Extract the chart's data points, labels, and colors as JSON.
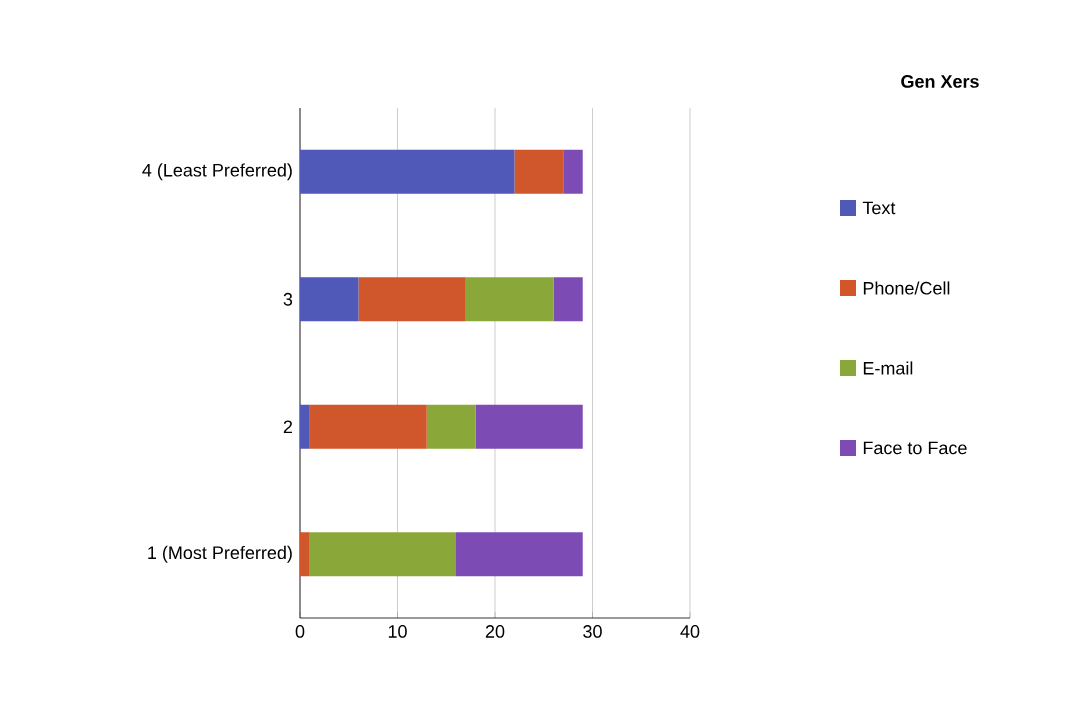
{
  "chart_data": {
    "type": "bar",
    "orientation": "horizontal",
    "stacked": true,
    "legend_title": "Gen Xers",
    "legend": "right",
    "grid": "x",
    "categories": [
      "4 (Least Preferred)",
      "3",
      "2",
      "1 (Most Preferred)"
    ],
    "xlim": [
      0,
      40
    ],
    "xticks": [
      0,
      10,
      20,
      30,
      40
    ],
    "series": [
      {
        "name": "Text",
        "color": "#5058b8",
        "values": [
          22,
          6,
          1,
          0
        ]
      },
      {
        "name": "Phone/Cell",
        "color": "#d0562c",
        "values": [
          5,
          11,
          12,
          1
        ]
      },
      {
        "name": "E-mail",
        "color": "#8aa83a",
        "values": [
          0,
          9,
          5,
          15
        ]
      },
      {
        "name": "Face to Face",
        "color": "#7c4cb4",
        "values": [
          2,
          3,
          11,
          13
        ]
      }
    ]
  }
}
